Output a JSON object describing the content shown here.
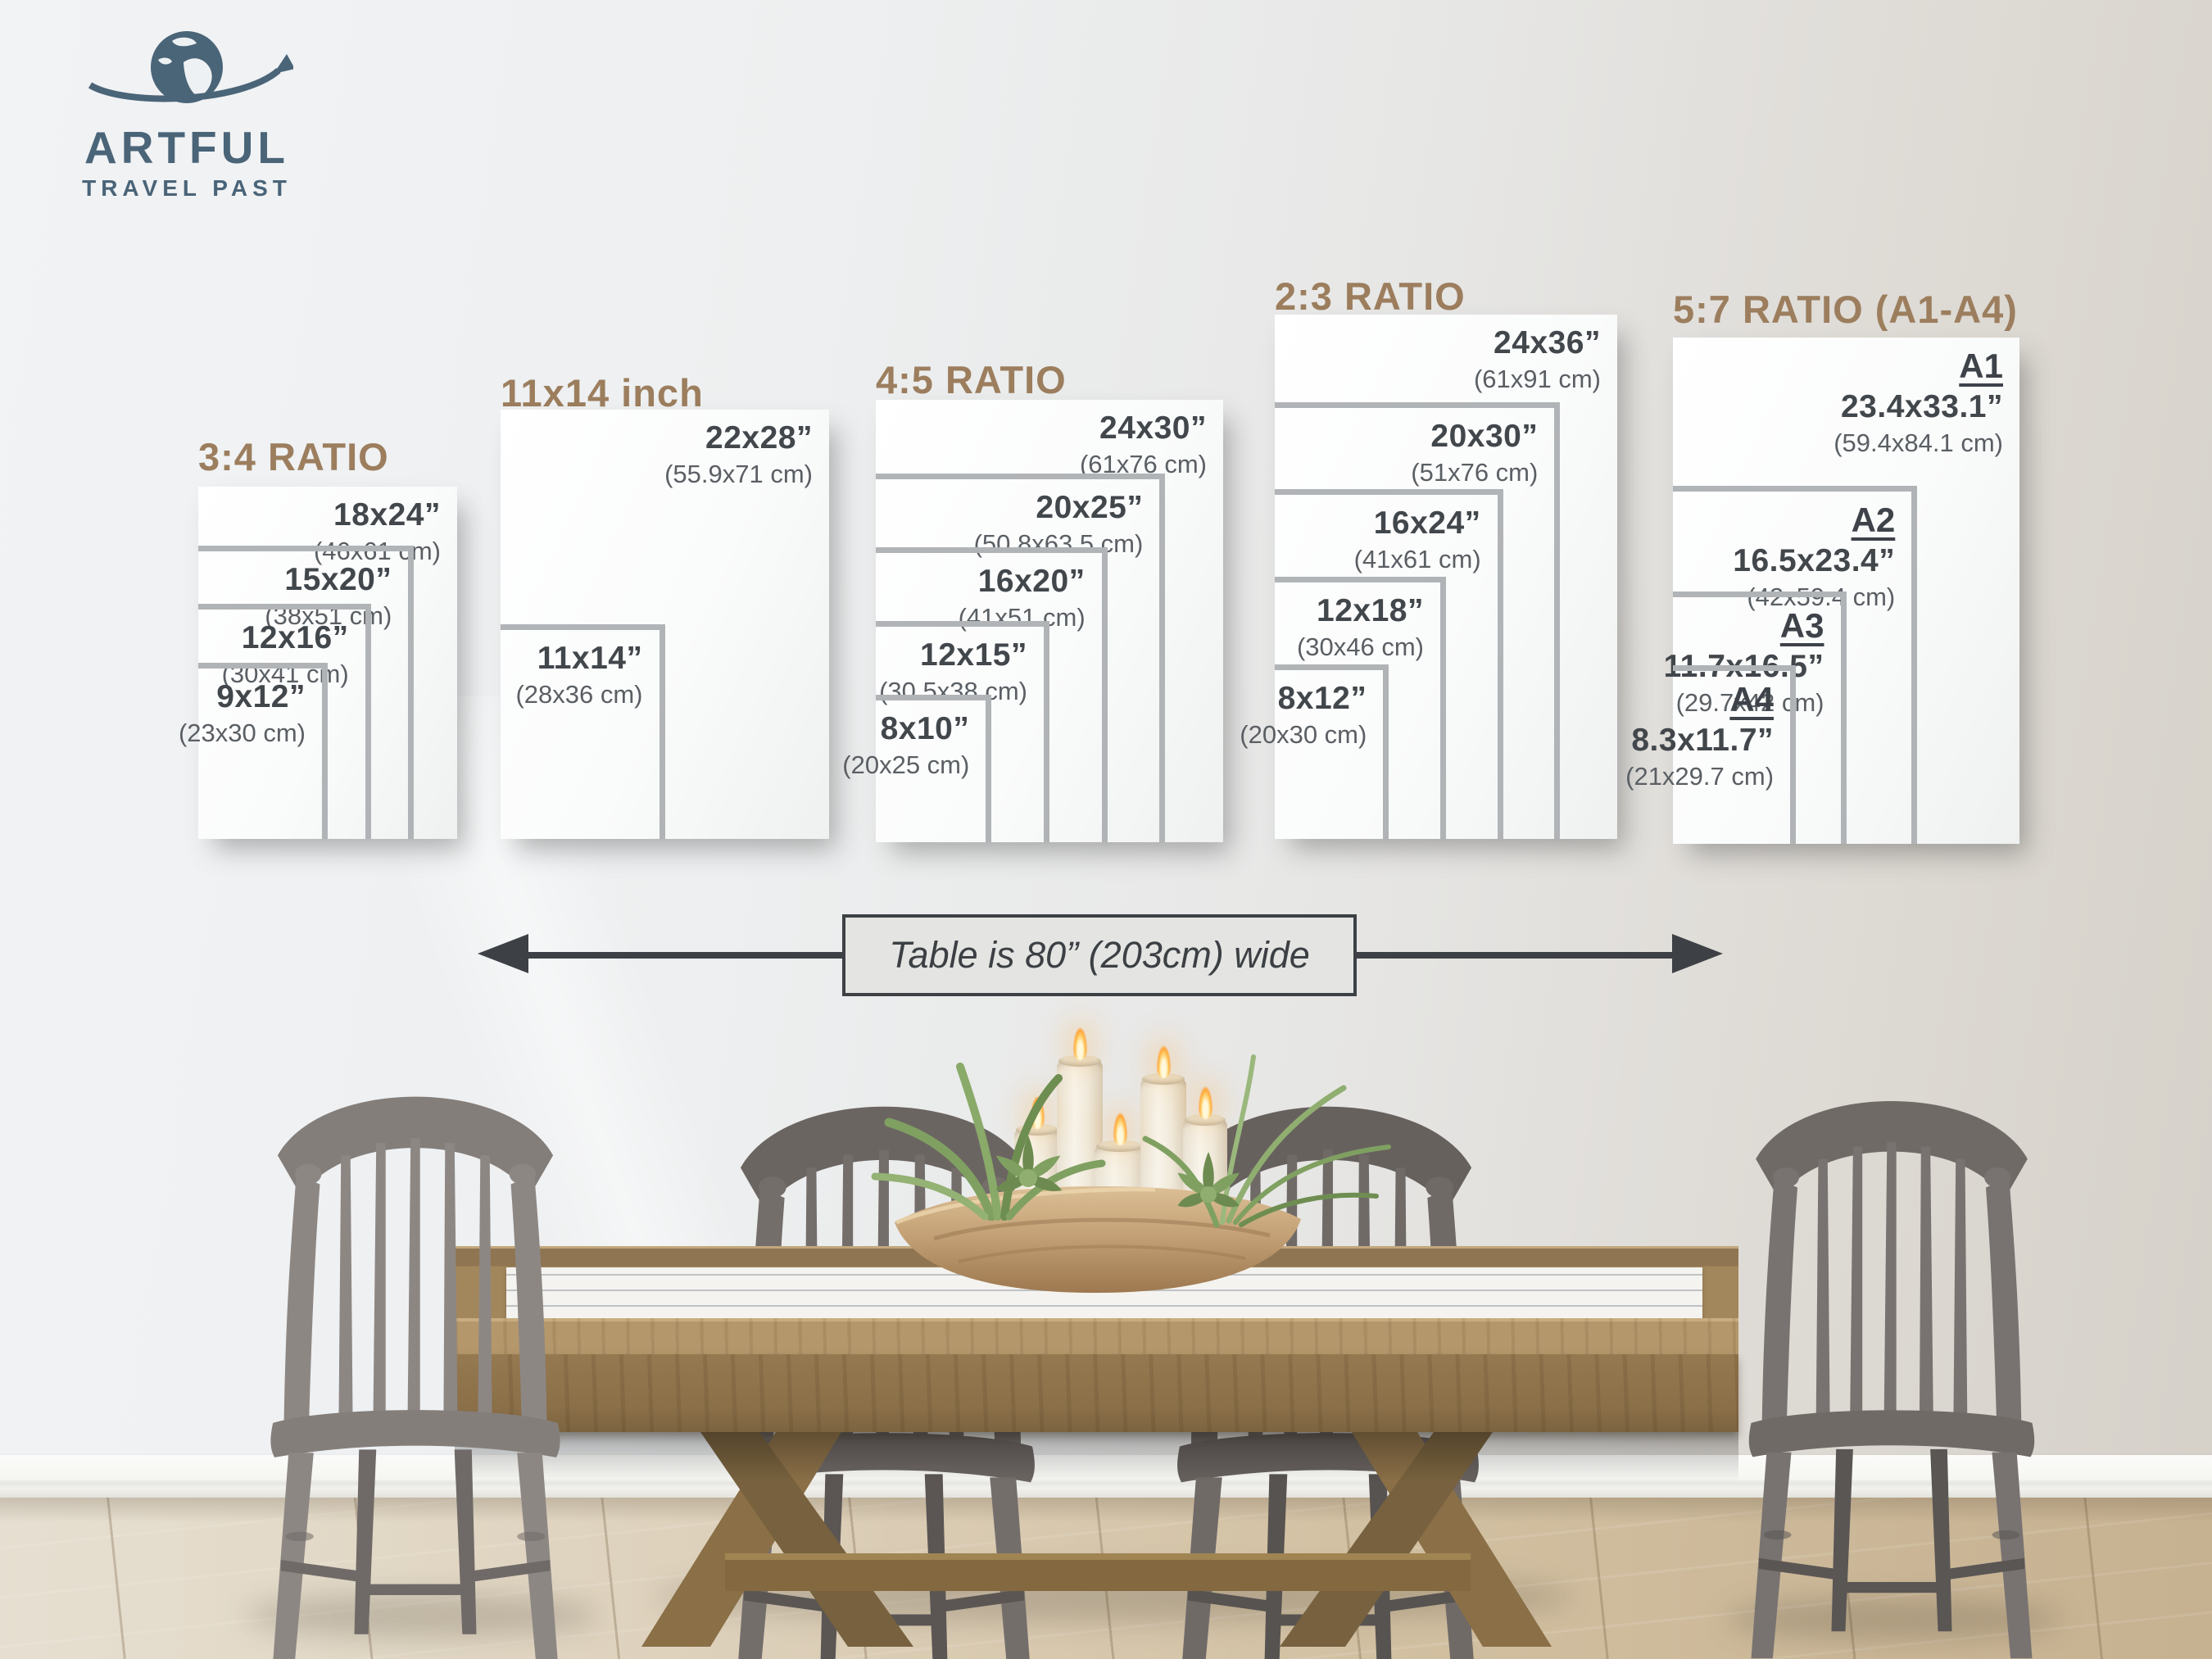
{
  "logo": {
    "brand_top": "ARTFUL",
    "brand_bottom": "TRAVEL PAST"
  },
  "table_note": {
    "text": "Table is 80” (203cm) wide"
  },
  "size_groups": [
    {
      "id": "ratio-3-4",
      "title": "3:4 RATIO",
      "sizes": [
        {
          "inches": "18x24”",
          "cm": "(46x61 cm)",
          "w": 18,
          "h": 24
        },
        {
          "inches": "15x20”",
          "cm": "(38x51 cm)",
          "w": 15,
          "h": 20
        },
        {
          "inches": "12x16”",
          "cm": "(30x41 cm)",
          "w": 12,
          "h": 16
        },
        {
          "inches": "9x12”",
          "cm": "(23x30 cm)",
          "w": 9,
          "h": 12
        }
      ]
    },
    {
      "id": "inch-11x14",
      "title": "11x14 inch",
      "sizes": [
        {
          "inches": "22x28”",
          "cm": "(55.9x71 cm)",
          "w": 22,
          "h": 28
        },
        {
          "inches": "11x14”",
          "cm": "(28x36 cm)",
          "w": 11,
          "h": 14
        }
      ]
    },
    {
      "id": "ratio-4-5",
      "title": "4:5 RATIO",
      "sizes": [
        {
          "inches": "24x30”",
          "cm": "(61x76 cm)",
          "w": 24,
          "h": 30
        },
        {
          "inches": "20x25”",
          "cm": "(50.8x63.5 cm)",
          "w": 20,
          "h": 25
        },
        {
          "inches": "16x20”",
          "cm": "(41x51 cm)",
          "w": 16,
          "h": 20
        },
        {
          "inches": "12x15”",
          "cm": "(30.5x38 cm)",
          "w": 12,
          "h": 15
        },
        {
          "inches": "8x10”",
          "cm": "(20x25 cm)",
          "w": 8,
          "h": 10
        }
      ]
    },
    {
      "id": "ratio-2-3",
      "title": "2:3 RATIO",
      "sizes": [
        {
          "inches": "24x36”",
          "cm": "(61x91 cm)",
          "w": 24,
          "h": 36
        },
        {
          "inches": "20x30”",
          "cm": "(51x76 cm)",
          "w": 20,
          "h": 30
        },
        {
          "inches": "16x24”",
          "cm": "(41x61 cm)",
          "w": 16,
          "h": 24
        },
        {
          "inches": "12x18”",
          "cm": "(30x46 cm)",
          "w": 12,
          "h": 18
        },
        {
          "inches": "8x12”",
          "cm": "(20x30 cm)",
          "w": 8,
          "h": 12
        }
      ]
    },
    {
      "id": "ratio-5-7",
      "title": "5:7 RATIO (A1-A4)",
      "sizes": [
        {
          "name": "A1",
          "inches": "23.4x33.1”",
          "cm": "(59.4x84.1 cm)",
          "w": 23.4,
          "h": 33.1
        },
        {
          "name": "A2",
          "inches": "16.5x23.4”",
          "cm": "(42x59.4 cm)",
          "w": 16.5,
          "h": 23.4
        },
        {
          "name": "A3",
          "inches": "11.7x16.5”",
          "cm": "(29.7x42 cm)",
          "w": 11.7,
          "h": 16.5
        },
        {
          "name": "A4",
          "inches": "8.3x11.7”",
          "cm": "(21x29.7 cm)",
          "w": 8.3,
          "h": 11.7
        }
      ]
    }
  ],
  "colors": {
    "accent_brown": "#9c7e5e",
    "logo_blue": "#4a6478",
    "arrow_dark": "#3d4145",
    "frame_gray": "#b1b4b7",
    "table_wood": "#a2875c",
    "chair_gray": "#7a7572",
    "floor_wood": "#d8c9b0",
    "wall_gray": "#e9eaec"
  }
}
